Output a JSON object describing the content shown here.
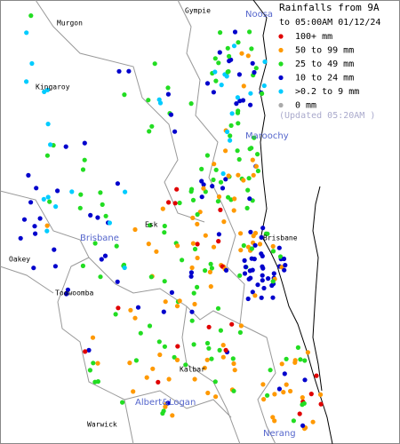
{
  "legend": {
    "title": "Rainfalls from 9A",
    "subtitle": "to 05:00AM 01/12/24",
    "items": [
      {
        "label": "100+ mm",
        "color": "#e00000"
      },
      {
        "label": "50  to 99 mm",
        "color": "#ff9900"
      },
      {
        "label": "25  to 49 mm",
        "color": "#22dd22"
      },
      {
        "label": "10  to 24 mm",
        "color": "#0000cc"
      },
      {
        "label": ">0.2 to 9 mm",
        "color": "#00ccff"
      },
      {
        "label": "0 mm",
        "color": "#aaaaaa"
      }
    ],
    "updated": "(Updated 05:20AM  )"
  },
  "places": [
    {
      "label": "Gympie",
      "style": "town"
    },
    {
      "label": "Noosa",
      "style": "region"
    },
    {
      "label": "Murgon",
      "style": "town"
    },
    {
      "label": "Kingaroy",
      "style": "town"
    },
    {
      "label": "Maroochy",
      "style": "region"
    },
    {
      "label": "Brisbane",
      "style": "region"
    },
    {
      "label": "Esk",
      "style": "town"
    },
    {
      "label": "Brisbane",
      "style": "town"
    },
    {
      "label": "Oakey",
      "style": "town"
    },
    {
      "label": "Toowoomba",
      "style": "town"
    },
    {
      "label": "Kalbar",
      "style": "town"
    },
    {
      "label": "Albert&Logan",
      "style": "region"
    },
    {
      "label": "Warwick",
      "style": "town"
    },
    {
      "label": "Nerang",
      "style": "region"
    }
  ]
}
